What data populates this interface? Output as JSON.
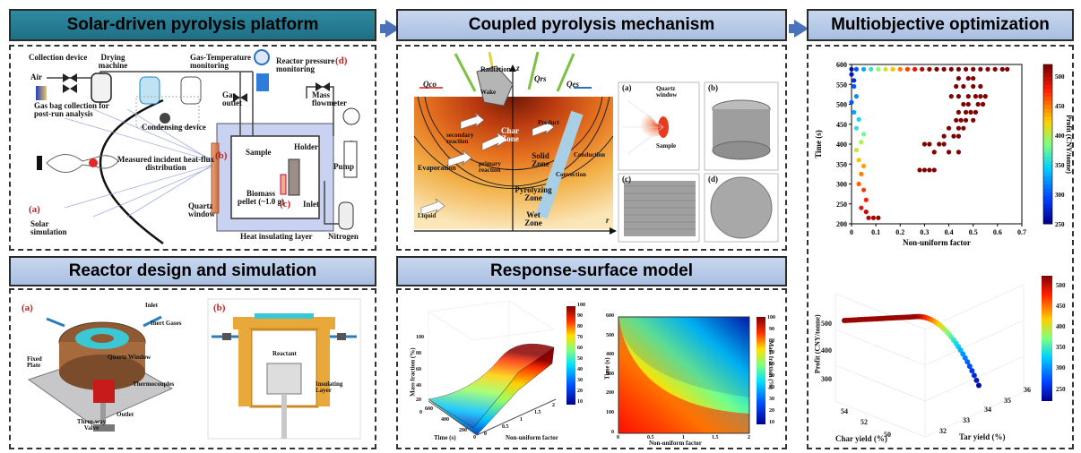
{
  "headers": {
    "platform": "Solar-driven pyrolysis platform",
    "mechanism": "Coupled pyrolysis mechanism",
    "optimization": "Multiobjective optimization",
    "reactor": "Reactor design and simulation",
    "response": "Response-surface model"
  },
  "platform": {
    "collection_device": "Collection device",
    "air": "Air",
    "drying_machine": "Drying machine",
    "gas_temp": "Gas-Temperature monitoring",
    "reactor_pressure": "Reactor pressure monitoring",
    "gas_bag": "Gas bag collection for post-run analysis",
    "condensing": "Condensing device",
    "gas_outlet": "Gas outlet",
    "mass_flowmeter": "Mass flowmeter",
    "measured_flux": "Measured incident heat-flux distribution",
    "sample": "Sample",
    "holder": "Holder",
    "biomass_pellet": "Biomass pellet (~1.0 g)",
    "inlet": "Inlet",
    "pump": "Pump",
    "quartz_window": "Quartz window",
    "solar_simulation": "Solar simulation",
    "heat_insulating": "Heat insulating layer",
    "nitrogen": "Nitrogen",
    "tag_a": "(a)",
    "tag_b": "(b)",
    "tag_c": "(c)",
    "tag_d": "(d)"
  },
  "mechanism": {
    "radiation": "Radiation",
    "wake": "Wake",
    "z": "z",
    "r": "r",
    "q_co": "Qco",
    "q_rs": "Qrs",
    "q_es": "Qes",
    "char_zone": "Char Zone",
    "product": "Product",
    "secondary": "secondary reaction",
    "primary": "primary reaction",
    "solid_zone": "Solid Zone",
    "evaporation": "Evaporation",
    "conduction": "Conduction",
    "convection": "Convection",
    "pyrolyzing_zone": "Pyrolyzing Zone",
    "liquid": "Liquid",
    "wet_zone": "Wet Zone",
    "quartz_window": "Quartz window",
    "sample": "Sample",
    "tag_a": "(a)",
    "tag_b": "(b)",
    "tag_c": "(c)",
    "tag_d": "(d)"
  },
  "reactor": {
    "tag_a": "(a)",
    "tag_b": "(b)",
    "inlet": "Inlet",
    "inert_gases": "Inert Gases",
    "quartz_window": "Quartz Window",
    "fixed_plate": "Fixed Plate",
    "thermocouples": "Thermocouples",
    "outlet": "Outlet",
    "three_way_valve": "Three-way Valve",
    "reactant": "Reactant",
    "insulating": "Insulating Layer"
  },
  "response": {
    "z_label": "Mass fraction (%)",
    "x_label": "Time (s)",
    "y_label": "Non-uniform factor",
    "z_ticks": [
      "100",
      "80",
      "60",
      "40",
      "20",
      "0"
    ],
    "time_ticks": [
      "600",
      "400",
      "200",
      "0"
    ],
    "nu_ticks": [
      "0",
      "0.5",
      "1",
      "1.5",
      "2"
    ],
    "cb_ticks": [
      "100",
      "90",
      "80",
      "70",
      "60",
      "50",
      "40",
      "30",
      "20",
      "10"
    ],
    "hm_y_label": "Time (s)",
    "hm_x_label": "Non-uniform factor",
    "hm_y_ticks": [
      "600",
      "500",
      "400",
      "300",
      "200",
      "100",
      "0"
    ],
    "hm_x_ticks": [
      "0",
      "0.5",
      "1",
      "1.5",
      "2"
    ],
    "hm_cb_label": "Mass fraction (%)",
    "hm_cb_ticks": [
      "100",
      "90",
      "80",
      "70",
      "60",
      "50",
      "40",
      "30",
      "20",
      "10"
    ]
  },
  "optimization": {
    "ylabel": "Time (s)",
    "xlabel": "Non-uniform factor",
    "cblabel": "Profit (CNY/tonne)",
    "y_ticks": [
      "600",
      "550",
      "500",
      "450",
      "400",
      "350",
      "300",
      "250",
      "200"
    ],
    "x_ticks": [
      "0",
      "0.1",
      "0.2",
      "0.3",
      "0.4",
      "0.5",
      "0.6",
      "0.7"
    ],
    "cb_ticks": [
      "500",
      "450",
      "400",
      "350",
      "300",
      "250"
    ],
    "p3_zlabel": "Profit (CNY/tonne)",
    "p3_z_ticks": [
      "500",
      "400",
      "300"
    ],
    "p3_x_label": "Char yield (%)",
    "p3_x_ticks": [
      "54",
      "52",
      "50"
    ],
    "p3_y_label": "Tar yield (%)",
    "p3_y_ticks": [
      "32",
      "33",
      "34",
      "35",
      "36"
    ],
    "p3_cb_ticks": [
      "500",
      "450",
      "400",
      "350",
      "300",
      "250"
    ]
  },
  "chart_data": {
    "type": "scatter",
    "xlabel": "Non-uniform factor",
    "ylabel": "Time (s)",
    "xlim": [
      0,
      0.7
    ],
    "ylim": [
      200,
      600
    ],
    "color_label": "Profit (CNY/tonne)",
    "color_range": [
      250,
      520
    ],
    "points": [
      {
        "x": 0.0,
        "y": 588,
        "c": 260
      },
      {
        "x": 0.02,
        "y": 588,
        "c": 300
      },
      {
        "x": 0.05,
        "y": 588,
        "c": 330
      },
      {
        "x": 0.08,
        "y": 588,
        "c": 360
      },
      {
        "x": 0.11,
        "y": 588,
        "c": 390
      },
      {
        "x": 0.14,
        "y": 588,
        "c": 410
      },
      {
        "x": 0.17,
        "y": 588,
        "c": 430
      },
      {
        "x": 0.2,
        "y": 588,
        "c": 450
      },
      {
        "x": 0.23,
        "y": 588,
        "c": 470
      },
      {
        "x": 0.26,
        "y": 588,
        "c": 490
      },
      {
        "x": 0.29,
        "y": 588,
        "c": 505
      },
      {
        "x": 0.32,
        "y": 588,
        "c": 515
      },
      {
        "x": 0.35,
        "y": 588,
        "c": 520
      },
      {
        "x": 0.38,
        "y": 588,
        "c": 520
      },
      {
        "x": 0.41,
        "y": 588,
        "c": 520
      },
      {
        "x": 0.44,
        "y": 588,
        "c": 520
      },
      {
        "x": 0.47,
        "y": 588,
        "c": 520
      },
      {
        "x": 0.5,
        "y": 588,
        "c": 520
      },
      {
        "x": 0.53,
        "y": 588,
        "c": 520
      },
      {
        "x": 0.56,
        "y": 588,
        "c": 520
      },
      {
        "x": 0.59,
        "y": 588,
        "c": 520
      },
      {
        "x": 0.62,
        "y": 588,
        "c": 520
      },
      {
        "x": 0.64,
        "y": 588,
        "c": 520
      },
      {
        "x": 0.0,
        "y": 575,
        "c": 265
      },
      {
        "x": 0.01,
        "y": 560,
        "c": 280
      },
      {
        "x": 0.01,
        "y": 545,
        "c": 300
      },
      {
        "x": 0.02,
        "y": 520,
        "c": 320
      },
      {
        "x": 0.0,
        "y": 505,
        "c": 300
      },
      {
        "x": 0.01,
        "y": 480,
        "c": 330
      },
      {
        "x": 0.03,
        "y": 462,
        "c": 350
      },
      {
        "x": 0.02,
        "y": 440,
        "c": 360
      },
      {
        "x": 0.05,
        "y": 425,
        "c": 380
      },
      {
        "x": 0.04,
        "y": 405,
        "c": 400
      },
      {
        "x": 0.02,
        "y": 385,
        "c": 410
      },
      {
        "x": 0.03,
        "y": 360,
        "c": 430
      },
      {
        "x": 0.05,
        "y": 345,
        "c": 440
      },
      {
        "x": 0.04,
        "y": 325,
        "c": 450
      },
      {
        "x": 0.03,
        "y": 300,
        "c": 460
      },
      {
        "x": 0.05,
        "y": 285,
        "c": 470
      },
      {
        "x": 0.06,
        "y": 260,
        "c": 480
      },
      {
        "x": 0.04,
        "y": 240,
        "c": 490
      },
      {
        "x": 0.06,
        "y": 230,
        "c": 500
      },
      {
        "x": 0.07,
        "y": 215,
        "c": 505
      },
      {
        "x": 0.09,
        "y": 215,
        "c": 510
      },
      {
        "x": 0.11,
        "y": 215,
        "c": 515
      },
      {
        "x": 0.28,
        "y": 335,
        "c": 520
      },
      {
        "x": 0.3,
        "y": 335,
        "c": 520
      },
      {
        "x": 0.32,
        "y": 335,
        "c": 520
      },
      {
        "x": 0.34,
        "y": 335,
        "c": 520
      },
      {
        "x": 0.3,
        "y": 400,
        "c": 520
      },
      {
        "x": 0.32,
        "y": 400,
        "c": 520
      },
      {
        "x": 0.36,
        "y": 400,
        "c": 520
      },
      {
        "x": 0.38,
        "y": 400,
        "c": 520
      },
      {
        "x": 0.34,
        "y": 380,
        "c": 520
      },
      {
        "x": 0.4,
        "y": 380,
        "c": 520
      },
      {
        "x": 0.44,
        "y": 380,
        "c": 520
      },
      {
        "x": 0.38,
        "y": 420,
        "c": 520
      },
      {
        "x": 0.42,
        "y": 420,
        "c": 520
      },
      {
        "x": 0.44,
        "y": 420,
        "c": 520
      },
      {
        "x": 0.4,
        "y": 440,
        "c": 520
      },
      {
        "x": 0.44,
        "y": 440,
        "c": 520
      },
      {
        "x": 0.46,
        "y": 440,
        "c": 520
      },
      {
        "x": 0.43,
        "y": 460,
        "c": 520
      },
      {
        "x": 0.45,
        "y": 460,
        "c": 520
      },
      {
        "x": 0.47,
        "y": 460,
        "c": 520
      },
      {
        "x": 0.5,
        "y": 460,
        "c": 520
      },
      {
        "x": 0.44,
        "y": 480,
        "c": 520
      },
      {
        "x": 0.47,
        "y": 480,
        "c": 520
      },
      {
        "x": 0.49,
        "y": 480,
        "c": 520
      },
      {
        "x": 0.51,
        "y": 480,
        "c": 520
      },
      {
        "x": 0.46,
        "y": 500,
        "c": 520
      },
      {
        "x": 0.48,
        "y": 500,
        "c": 520
      },
      {
        "x": 0.52,
        "y": 500,
        "c": 520
      },
      {
        "x": 0.54,
        "y": 500,
        "c": 520
      },
      {
        "x": 0.41,
        "y": 520,
        "c": 520
      },
      {
        "x": 0.44,
        "y": 520,
        "c": 520
      },
      {
        "x": 0.48,
        "y": 520,
        "c": 520
      },
      {
        "x": 0.51,
        "y": 520,
        "c": 520
      },
      {
        "x": 0.53,
        "y": 520,
        "c": 520
      },
      {
        "x": 0.55,
        "y": 520,
        "c": 520
      },
      {
        "x": 0.43,
        "y": 545,
        "c": 520
      },
      {
        "x": 0.46,
        "y": 545,
        "c": 520
      },
      {
        "x": 0.5,
        "y": 545,
        "c": 520
      },
      {
        "x": 0.53,
        "y": 545,
        "c": 520
      },
      {
        "x": 0.44,
        "y": 565,
        "c": 520
      },
      {
        "x": 0.48,
        "y": 565,
        "c": 520
      },
      {
        "x": 0.5,
        "y": 565,
        "c": 520
      }
    ]
  }
}
